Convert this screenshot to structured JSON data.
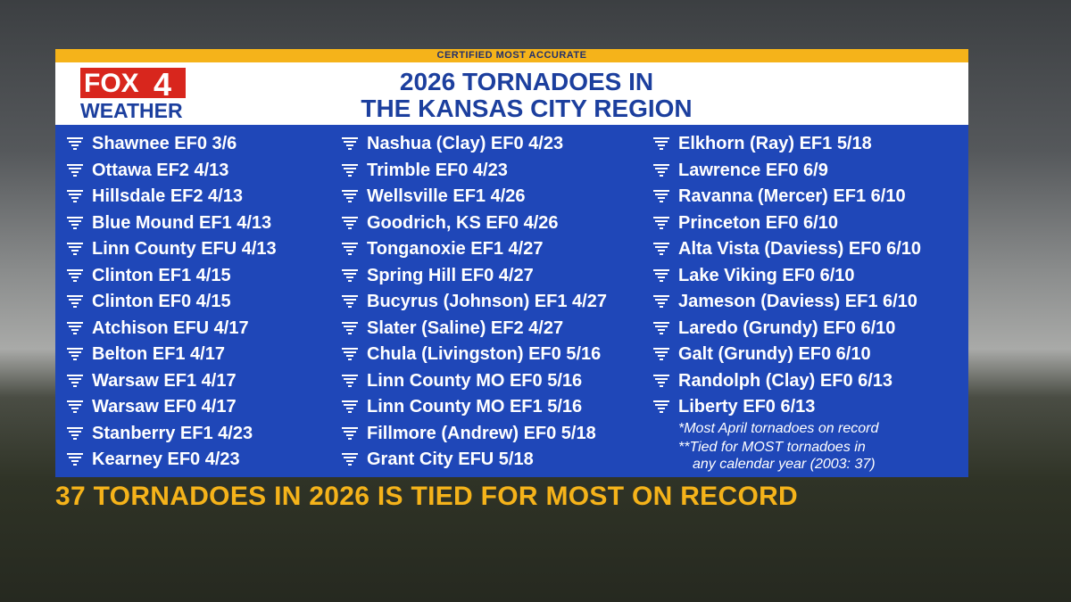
{
  "banner": "CERTIFIED MOST ACCURATE",
  "logo": {
    "brand": "FOX",
    "channel": "4",
    "product": "WEATHER"
  },
  "title": [
    "2026 TORNADOES IN",
    "THE KANSAS CITY REGION"
  ],
  "columns": [
    [
      "Shawnee EF0 3/6",
      "Ottawa EF2 4/13",
      "Hillsdale EF2 4/13",
      "Blue Mound EF1 4/13",
      "Linn County EFU 4/13",
      "Clinton EF1 4/15",
      "Clinton EF0 4/15",
      "Atchison EFU 4/17",
      "Belton EF1 4/17",
      "Warsaw EF1 4/17",
      "Warsaw EF0 4/17",
      "Stanberry EF1 4/23",
      "Kearney EF0 4/23"
    ],
    [
      "Nashua (Clay) EF0 4/23",
      "Trimble EF0 4/23",
      "Wellsville EF1 4/26",
      "Goodrich, KS EF0 4/26",
      "Tonganoxie EF1 4/27",
      "Spring Hill EF0 4/27",
      "Bucyrus (Johnson) EF1 4/27",
      "Slater (Saline) EF2 4/27",
      "Chula (Livingston) EF0 5/16",
      "Linn County MO EF0 5/16",
      "Linn County MO EF1 5/16",
      "Fillmore (Andrew) EF0 5/18",
      "Grant City EFU 5/18"
    ],
    [
      "Elkhorn (Ray) EF1 5/18",
      "Lawrence EF0 6/9",
      "Ravanna (Mercer) EF1 6/10",
      "Princeton EF0 6/10",
      "Alta Vista (Daviess) EF0 6/10",
      "Lake Viking EF0 6/10",
      "Jameson (Daviess) EF1 6/10",
      "Laredo (Grundy) EF0 6/10",
      "Galt (Grundy) EF0 6/10",
      "Randolph (Clay) EF0 6/13",
      "Liberty EF0 6/13"
    ]
  ],
  "footnotes": [
    "*Most April tornadoes on record",
    "**Tied for MOST tornadoes in",
    "any calendar year (2003: 37)"
  ],
  "caption": "37 TORNADOES IN 2026 IS TIED FOR MOST ON RECORD"
}
